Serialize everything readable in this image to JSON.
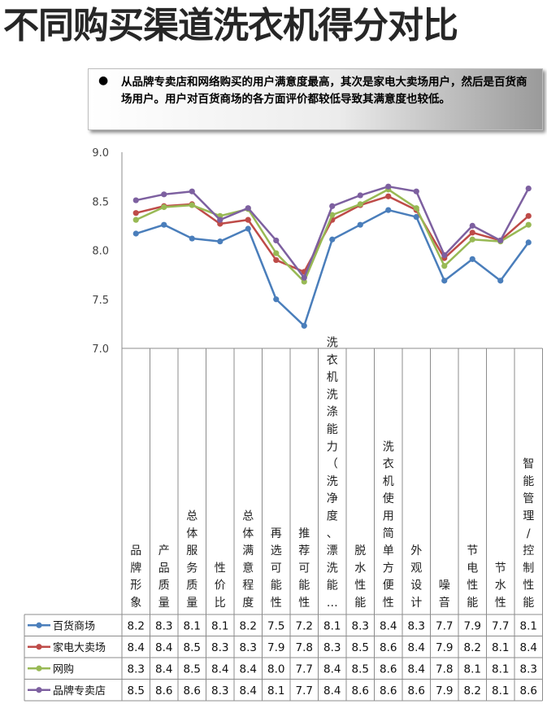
{
  "page": {
    "title": "不同购买渠道洗衣机得分对比",
    "note_bullet": "●",
    "note_text": "从品牌专卖店和网络购买的用户满意度最高，其次是家电大卖场用户，然后是百货商场用户。用户对百货商场的各方面评价都较低导致其满意度也较低。"
  },
  "chart_data": {
    "type": "line",
    "title": "",
    "xlabel": "",
    "ylabel": "",
    "ylim": [
      7.0,
      9.0
    ],
    "yticks": [
      "9.0",
      "8.5",
      "8.0",
      "7.5",
      "7.0"
    ],
    "grid": false,
    "legend": "table-left",
    "categories": [
      "品牌形象",
      "产品质量",
      "总体服务质量",
      "性价比",
      "总体满意程度",
      "再选可能性",
      "推荐可能性",
      "洗衣机洗涤能力（洗净度、漂洗能…",
      "脱水性能",
      "洗衣机使用简单方便性",
      "外观设计",
      "噪音",
      "节电性能",
      "节水性",
      "智能管理/控制性能"
    ],
    "series": [
      {
        "name": "百货商场",
        "color": "#4a7ebb",
        "values": [
          8.17,
          8.26,
          8.12,
          8.09,
          8.22,
          7.5,
          7.23,
          8.11,
          8.26,
          8.41,
          8.34,
          7.69,
          7.91,
          7.69,
          8.08
        ],
        "labels": [
          "8.2",
          "8.3",
          "8.1",
          "8.1",
          "8.2",
          "7.5",
          "7.2",
          "8.1",
          "8.3",
          "8.4",
          "8.3",
          "7.7",
          "7.9",
          "7.7",
          "8.1"
        ]
      },
      {
        "name": "家电大卖场",
        "color": "#be4b48",
        "values": [
          8.38,
          8.45,
          8.47,
          8.27,
          8.31,
          7.9,
          7.78,
          8.31,
          8.46,
          8.55,
          8.41,
          7.92,
          8.18,
          8.1,
          8.35
        ],
        "labels": [
          "8.4",
          "8.4",
          "8.5",
          "8.3",
          "8.3",
          "7.9",
          "7.8",
          "8.3",
          "8.5",
          "8.6",
          "8.4",
          "7.9",
          "8.2",
          "8.1",
          "8.4"
        ]
      },
      {
        "name": "网购",
        "color": "#98b954",
        "values": [
          8.31,
          8.44,
          8.46,
          8.35,
          8.42,
          7.97,
          7.68,
          8.36,
          8.47,
          8.62,
          8.43,
          7.84,
          8.11,
          8.09,
          8.26
        ],
        "labels": [
          "8.3",
          "8.4",
          "8.5",
          "8.4",
          "8.4",
          "8.0",
          "7.7",
          "8.4",
          "8.5",
          "8.6",
          "8.4",
          "7.8",
          "8.1",
          "8.1",
          "8.3"
        ]
      },
      {
        "name": "品牌专卖店",
        "color": "#7d60a0",
        "values": [
          8.51,
          8.57,
          8.6,
          8.31,
          8.43,
          8.1,
          7.72,
          8.45,
          8.56,
          8.65,
          8.6,
          7.95,
          8.25,
          8.1,
          8.63
        ],
        "labels": [
          "8.5",
          "8.6",
          "8.6",
          "8.3",
          "8.4",
          "8.1",
          "7.7",
          "8.4",
          "8.6",
          "8.6",
          "8.6",
          "7.9",
          "8.2",
          "8.1",
          "8.6"
        ]
      }
    ]
  }
}
